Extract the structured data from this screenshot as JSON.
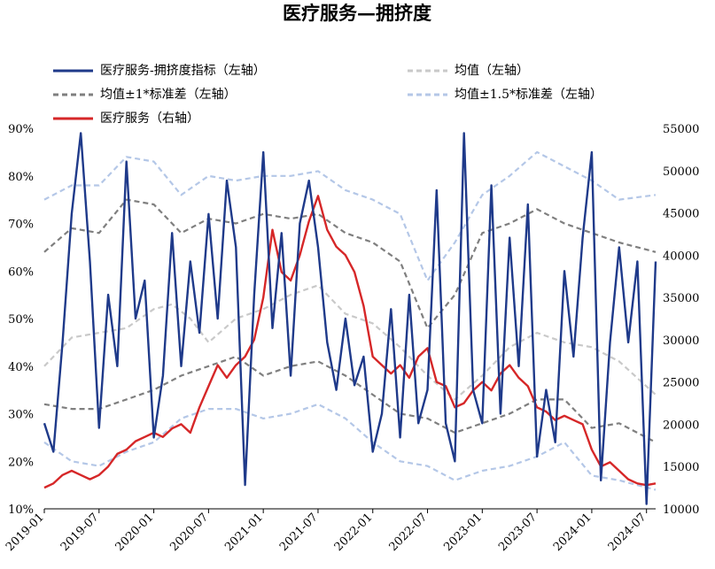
{
  "chart_data": {
    "type": "line",
    "title": "医疗服务—拥挤度",
    "x_ticks": [
      "2019-01",
      "2019-07",
      "2020-01",
      "2020-07",
      "2021-01",
      "2021-07",
      "2022-01",
      "2022-07",
      "2023-01",
      "2023-07",
      "2024-01",
      "2024-07"
    ],
    "y_left_ticks": [
      "10%",
      "20%",
      "30%",
      "40%",
      "50%",
      "60%",
      "70%",
      "80%",
      "90%"
    ],
    "y_right_ticks": [
      "10000",
      "15000",
      "20000",
      "25000",
      "30000",
      "35000",
      "40000",
      "45000",
      "50000",
      "55000"
    ],
    "ylim_left": [
      10,
      90
    ],
    "ylim_right": [
      10000,
      55000
    ],
    "xlim": [
      "2019-01",
      "2024-08"
    ],
    "series": [
      {
        "name": "医疗服务-拥挤度指标（左轴）",
        "axis": "left",
        "color": "#1f3a8a",
        "style": "solid",
        "points": [
          [
            "2019-01",
            28
          ],
          [
            "2019-02",
            22
          ],
          [
            "2019-03",
            45
          ],
          [
            "2019-04",
            72
          ],
          [
            "2019-05",
            89
          ],
          [
            "2019-06",
            62
          ],
          [
            "2019-07",
            27
          ],
          [
            "2019-08",
            55
          ],
          [
            "2019-09",
            40
          ],
          [
            "2019-10",
            83
          ],
          [
            "2019-11",
            50
          ],
          [
            "2019-12",
            58
          ],
          [
            "2020-01",
            25
          ],
          [
            "2020-02",
            38
          ],
          [
            "2020-03",
            68
          ],
          [
            "2020-04",
            40
          ],
          [
            "2020-05",
            62
          ],
          [
            "2020-06",
            47
          ],
          [
            "2020-07",
            72
          ],
          [
            "2020-08",
            50
          ],
          [
            "2020-09",
            79
          ],
          [
            "2020-10",
            65
          ],
          [
            "2020-11",
            15
          ],
          [
            "2020-12",
            55
          ],
          [
            "2021-01",
            85
          ],
          [
            "2021-02",
            48
          ],
          [
            "2021-03",
            68
          ],
          [
            "2021-04",
            38
          ],
          [
            "2021-05",
            70
          ],
          [
            "2021-06",
            79
          ],
          [
            "2021-07",
            65
          ],
          [
            "2021-08",
            45
          ],
          [
            "2021-09",
            35
          ],
          [
            "2021-10",
            50
          ],
          [
            "2021-11",
            36
          ],
          [
            "2021-12",
            42
          ],
          [
            "2022-01",
            22
          ],
          [
            "2022-02",
            30
          ],
          [
            "2022-03",
            52
          ],
          [
            "2022-04",
            25
          ],
          [
            "2022-05",
            55
          ],
          [
            "2022-06",
            28
          ],
          [
            "2022-07",
            35
          ],
          [
            "2022-08",
            77
          ],
          [
            "2022-09",
            28
          ],
          [
            "2022-10",
            20
          ],
          [
            "2022-11",
            89
          ],
          [
            "2022-12",
            35
          ],
          [
            "2023-01",
            28
          ],
          [
            "2023-02",
            78
          ],
          [
            "2023-03",
            30
          ],
          [
            "2023-04",
            67
          ],
          [
            "2023-05",
            40
          ],
          [
            "2023-06",
            74
          ],
          [
            "2023-07",
            21
          ],
          [
            "2023-08",
            35
          ],
          [
            "2023-09",
            24
          ],
          [
            "2023-10",
            60
          ],
          [
            "2023-11",
            42
          ],
          [
            "2023-12",
            67
          ],
          [
            "2024-01",
            85
          ],
          [
            "2024-02",
            16
          ],
          [
            "2024-03",
            45
          ],
          [
            "2024-04",
            65
          ],
          [
            "2024-05",
            45
          ],
          [
            "2024-06",
            62
          ],
          [
            "2024-07",
            11
          ],
          [
            "2024-08",
            62
          ]
        ]
      },
      {
        "name": "均值（左轴）",
        "axis": "left",
        "color": "#c9c9c9",
        "style": "dashed",
        "points": [
          [
            "2019-01",
            40
          ],
          [
            "2019-04",
            46
          ],
          [
            "2019-07",
            47
          ],
          [
            "2019-10",
            48
          ],
          [
            "2020-01",
            52
          ],
          [
            "2020-03",
            53
          ],
          [
            "2020-05",
            50
          ],
          [
            "2020-07",
            45
          ],
          [
            "2020-10",
            50
          ],
          [
            "2021-01",
            52
          ],
          [
            "2021-04",
            55
          ],
          [
            "2021-07",
            57
          ],
          [
            "2021-10",
            51
          ],
          [
            "2022-01",
            49
          ],
          [
            "2022-04",
            44
          ],
          [
            "2022-07",
            38
          ],
          [
            "2022-10",
            33
          ],
          [
            "2023-01",
            38
          ],
          [
            "2023-04",
            44
          ],
          [
            "2023-07",
            47
          ],
          [
            "2023-10",
            45
          ],
          [
            "2024-01",
            44
          ],
          [
            "2024-04",
            41
          ],
          [
            "2024-08",
            34
          ]
        ]
      },
      {
        "name": "均值±1*标准差（左轴）",
        "axis": "left",
        "color": "#7f7f7f",
        "style": "dashed",
        "points": [
          [
            "2019-01",
            64
          ],
          [
            "2019-04",
            69
          ],
          [
            "2019-07",
            68
          ],
          [
            "2019-10",
            75
          ],
          [
            "2020-01",
            74
          ],
          [
            "2020-04",
            68
          ],
          [
            "2020-07",
            71
          ],
          [
            "2020-10",
            70
          ],
          [
            "2021-01",
            72
          ],
          [
            "2021-04",
            71
          ],
          [
            "2021-07",
            72
          ],
          [
            "2021-10",
            68
          ],
          [
            "2022-01",
            66
          ],
          [
            "2022-04",
            62
          ],
          [
            "2022-07",
            48
          ],
          [
            "2022-10",
            55
          ],
          [
            "2023-01",
            68
          ],
          [
            "2023-04",
            70
          ],
          [
            "2023-07",
            73
          ],
          [
            "2023-10",
            70
          ],
          [
            "2024-01",
            68
          ],
          [
            "2024-04",
            66
          ],
          [
            "2024-08",
            64
          ],
          [
            "2019-01",
            32
          ],
          [
            "2019-04",
            31
          ],
          [
            "2019-07",
            31
          ],
          [
            "2019-10",
            33
          ],
          [
            "2020-01",
            35
          ],
          [
            "2020-04",
            38
          ],
          [
            "2020-07",
            40
          ],
          [
            "2020-10",
            42
          ],
          [
            "2021-01",
            38
          ],
          [
            "2021-04",
            40
          ],
          [
            "2021-07",
            41
          ],
          [
            "2021-10",
            38
          ],
          [
            "2022-01",
            34
          ],
          [
            "2022-04",
            30
          ],
          [
            "2022-07",
            29
          ],
          [
            "2022-10",
            26
          ],
          [
            "2023-01",
            28
          ],
          [
            "2023-04",
            30
          ],
          [
            "2023-07",
            33
          ],
          [
            "2023-10",
            33
          ],
          [
            "2024-01",
            27
          ],
          [
            "2024-04",
            28
          ],
          [
            "2024-08",
            24
          ]
        ]
      },
      {
        "name": "均值±1.5*标准差（左轴）",
        "axis": "left",
        "color": "#b4c7e7",
        "style": "dashed",
        "points": [
          [
            "2019-01",
            75
          ],
          [
            "2019-04",
            78
          ],
          [
            "2019-07",
            78
          ],
          [
            "2019-10",
            84
          ],
          [
            "2020-01",
            83
          ],
          [
            "2020-04",
            76
          ],
          [
            "2020-07",
            80
          ],
          [
            "2020-10",
            79
          ],
          [
            "2021-01",
            80
          ],
          [
            "2021-04",
            80
          ],
          [
            "2021-07",
            81
          ],
          [
            "2021-10",
            77
          ],
          [
            "2022-01",
            75
          ],
          [
            "2022-04",
            72
          ],
          [
            "2022-07",
            58
          ],
          [
            "2022-10",
            66
          ],
          [
            "2023-01",
            76
          ],
          [
            "2023-04",
            80
          ],
          [
            "2023-07",
            85
          ],
          [
            "2023-10",
            82
          ],
          [
            "2024-01",
            79
          ],
          [
            "2024-04",
            75
          ],
          [
            "2024-08",
            76
          ],
          [
            "2019-01",
            24
          ],
          [
            "2019-04",
            20
          ],
          [
            "2019-07",
            19
          ],
          [
            "2019-10",
            22
          ],
          [
            "2020-01",
            24
          ],
          [
            "2020-04",
            29
          ],
          [
            "2020-07",
            31
          ],
          [
            "2020-10",
            31
          ],
          [
            "2021-01",
            29
          ],
          [
            "2021-04",
            30
          ],
          [
            "2021-07",
            32
          ],
          [
            "2021-10",
            29
          ],
          [
            "2022-01",
            24
          ],
          [
            "2022-04",
            20
          ],
          [
            "2022-07",
            19
          ],
          [
            "2022-10",
            16
          ],
          [
            "2023-01",
            18
          ],
          [
            "2023-04",
            19
          ],
          [
            "2023-07",
            21
          ],
          [
            "2023-10",
            24
          ],
          [
            "2024-01",
            17
          ],
          [
            "2024-04",
            16
          ],
          [
            "2024-08",
            14
          ]
        ]
      },
      {
        "name": "医疗服务（右轴）",
        "axis": "right",
        "color": "#d62728",
        "style": "solid",
        "points": [
          [
            "2019-01",
            12500
          ],
          [
            "2019-02",
            13000
          ],
          [
            "2019-03",
            14000
          ],
          [
            "2019-04",
            14500
          ],
          [
            "2019-05",
            14000
          ],
          [
            "2019-06",
            13500
          ],
          [
            "2019-07",
            14000
          ],
          [
            "2019-08",
            15000
          ],
          [
            "2019-09",
            16500
          ],
          [
            "2019-10",
            17000
          ],
          [
            "2019-11",
            18000
          ],
          [
            "2019-12",
            18500
          ],
          [
            "2020-01",
            19000
          ],
          [
            "2020-02",
            18500
          ],
          [
            "2020-03",
            19500
          ],
          [
            "2020-04",
            20000
          ],
          [
            "2020-05",
            19000
          ],
          [
            "2020-06",
            22000
          ],
          [
            "2020-07",
            24500
          ],
          [
            "2020-08",
            27000
          ],
          [
            "2020-09",
            25500
          ],
          [
            "2020-10",
            27000
          ],
          [
            "2020-11",
            28000
          ],
          [
            "2020-12",
            30000
          ],
          [
            "2021-01",
            35000
          ],
          [
            "2021-02",
            43000
          ],
          [
            "2021-03",
            38000
          ],
          [
            "2021-04",
            37000
          ],
          [
            "2021-05",
            40000
          ],
          [
            "2021-06",
            44000
          ],
          [
            "2021-07",
            47000
          ],
          [
            "2021-08",
            43000
          ],
          [
            "2021-09",
            41000
          ],
          [
            "2021-10",
            40000
          ],
          [
            "2021-11",
            38000
          ],
          [
            "2021-12",
            34000
          ],
          [
            "2022-01",
            28000
          ],
          [
            "2022-02",
            27000
          ],
          [
            "2022-03",
            26000
          ],
          [
            "2022-04",
            27000
          ],
          [
            "2022-05",
            25500
          ],
          [
            "2022-06",
            28000
          ],
          [
            "2022-07",
            29000
          ],
          [
            "2022-08",
            25000
          ],
          [
            "2022-09",
            24500
          ],
          [
            "2022-10",
            22000
          ],
          [
            "2022-11",
            22500
          ],
          [
            "2022-12",
            24000
          ],
          [
            "2023-01",
            25000
          ],
          [
            "2023-02",
            24000
          ],
          [
            "2023-03",
            26000
          ],
          [
            "2023-04",
            27000
          ],
          [
            "2023-05",
            25500
          ],
          [
            "2023-06",
            24500
          ],
          [
            "2023-07",
            22000
          ],
          [
            "2023-08",
            21500
          ],
          [
            "2023-09",
            20500
          ],
          [
            "2023-10",
            21000
          ],
          [
            "2023-11",
            20500
          ],
          [
            "2023-12",
            20000
          ],
          [
            "2024-01",
            17000
          ],
          [
            "2024-02",
            15000
          ],
          [
            "2024-03",
            15500
          ],
          [
            "2024-04",
            14500
          ],
          [
            "2024-05",
            13500
          ],
          [
            "2024-06",
            13000
          ],
          [
            "2024-07",
            12800
          ],
          [
            "2024-08",
            13000
          ]
        ]
      }
    ]
  }
}
